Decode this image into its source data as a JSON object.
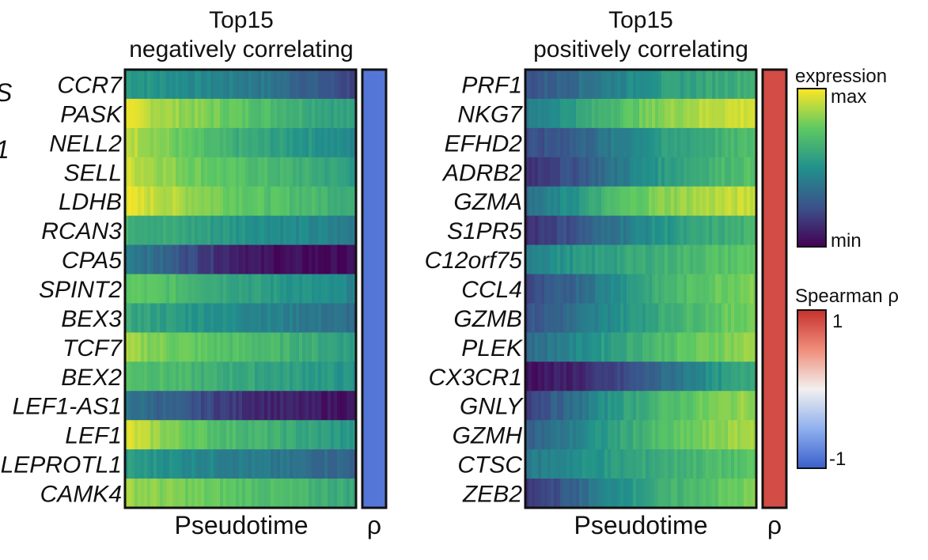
{
  "chart_data": [
    {
      "type": "heatmap",
      "title": "Top15\nnegatively correlating",
      "title_lines": [
        "Top15",
        "negatively correlating"
      ],
      "xlabel": "Pseudotime",
      "rho_label": "ρ",
      "rho": -0.85,
      "rows": [
        "CCR7",
        "PASK",
        "NELL2",
        "SELL",
        "LDHB",
        "RCAN3",
        "CPA5",
        "SPINT2",
        "BEX3",
        "TCF7",
        "BEX2",
        "LEF1-AS1",
        "LEF1",
        "LEPROTL1",
        "CAMK4"
      ],
      "row_colors": [
        "#111111",
        "#111111",
        "#111111",
        "#111111",
        "#111111",
        "#111111",
        "#111111",
        "#111111",
        "#111111",
        "#111111",
        "#111111",
        "#111111",
        "#111111",
        "#111111",
        "#111111"
      ],
      "expression_profile": [
        [
          0.55,
          0.5,
          0.45,
          0.4,
          0.3,
          0.2
        ],
        [
          0.95,
          0.85,
          0.78,
          0.7,
          0.62,
          0.55
        ],
        [
          0.92,
          0.78,
          0.65,
          0.58,
          0.52,
          0.45
        ],
        [
          0.93,
          0.82,
          0.74,
          0.68,
          0.62,
          0.55
        ],
        [
          0.96,
          0.88,
          0.8,
          0.72,
          0.68,
          0.62
        ],
        [
          0.65,
          0.6,
          0.55,
          0.5,
          0.46,
          0.4
        ],
        [
          0.45,
          0.3,
          0.15,
          0.05,
          0.03,
          0.02
        ],
        [
          0.75,
          0.7,
          0.62,
          0.55,
          0.5,
          0.45
        ],
        [
          0.6,
          0.55,
          0.5,
          0.45,
          0.4,
          0.35
        ],
        [
          0.85,
          0.78,
          0.72,
          0.68,
          0.62,
          0.55
        ],
        [
          0.72,
          0.68,
          0.62,
          0.58,
          0.55,
          0.5
        ],
        [
          0.4,
          0.3,
          0.2,
          0.12,
          0.08,
          0.05
        ],
        [
          0.95,
          0.8,
          0.7,
          0.65,
          0.58,
          0.52
        ],
        [
          0.55,
          0.5,
          0.45,
          0.4,
          0.36,
          0.32
        ],
        [
          0.85,
          0.8,
          0.75,
          0.7,
          0.65,
          0.6
        ]
      ]
    },
    {
      "type": "heatmap",
      "title": "Top15\npositively correlating",
      "title_lines": [
        "Top15",
        "positively correlating"
      ],
      "xlabel": "Pseudotime",
      "rho_label": "ρ",
      "rho": 0.85,
      "rows": [
        "PRF1",
        "NKG7",
        "EFHD2",
        "ADRB2",
        "GZMA",
        "S1PR5",
        "C12orf75",
        "CCL4",
        "GZMB",
        "PLEK",
        "CX3CR1",
        "GNLY",
        "GZMH",
        "CTSC",
        "ZEB2"
      ],
      "row_colors": [
        "#111111",
        "#111111",
        "#111111",
        "#111111",
        "#111111",
        "#111111",
        "#111111",
        "#111111",
        "#111111",
        "#111111",
        "#e01010",
        "#111111",
        "#111111",
        "#111111",
        "#111111"
      ],
      "expression_profile": [
        [
          0.25,
          0.35,
          0.45,
          0.55,
          0.6,
          0.65
        ],
        [
          0.4,
          0.55,
          0.7,
          0.82,
          0.9,
          0.95
        ],
        [
          0.22,
          0.3,
          0.42,
          0.55,
          0.62,
          0.7
        ],
        [
          0.15,
          0.25,
          0.4,
          0.55,
          0.65,
          0.72
        ],
        [
          0.35,
          0.5,
          0.7,
          0.82,
          0.88,
          0.92
        ],
        [
          0.15,
          0.25,
          0.4,
          0.52,
          0.6,
          0.65
        ],
        [
          0.45,
          0.52,
          0.58,
          0.64,
          0.7,
          0.75
        ],
        [
          0.2,
          0.32,
          0.5,
          0.65,
          0.75,
          0.82
        ],
        [
          0.25,
          0.35,
          0.5,
          0.62,
          0.72,
          0.8
        ],
        [
          0.35,
          0.45,
          0.58,
          0.7,
          0.78,
          0.85
        ],
        [
          0.05,
          0.1,
          0.2,
          0.35,
          0.5,
          0.62
        ],
        [
          0.2,
          0.35,
          0.55,
          0.68,
          0.78,
          0.85
        ],
        [
          0.3,
          0.42,
          0.58,
          0.7,
          0.8,
          0.88
        ],
        [
          0.4,
          0.48,
          0.55,
          0.62,
          0.68,
          0.72
        ],
        [
          0.15,
          0.3,
          0.5,
          0.62,
          0.72,
          0.8
        ]
      ]
    }
  ],
  "legend": {
    "expression": {
      "title": "expression",
      "max_label": "max",
      "min_label": "min"
    },
    "spearman": {
      "title": "Spearman ρ",
      "max_label": "1",
      "min_label": "-1"
    }
  },
  "edge_labels": [
    {
      "text": "S",
      "color": "#2a8fbf"
    },
    {
      "text": "1",
      "color": "#3aa33a"
    }
  ]
}
